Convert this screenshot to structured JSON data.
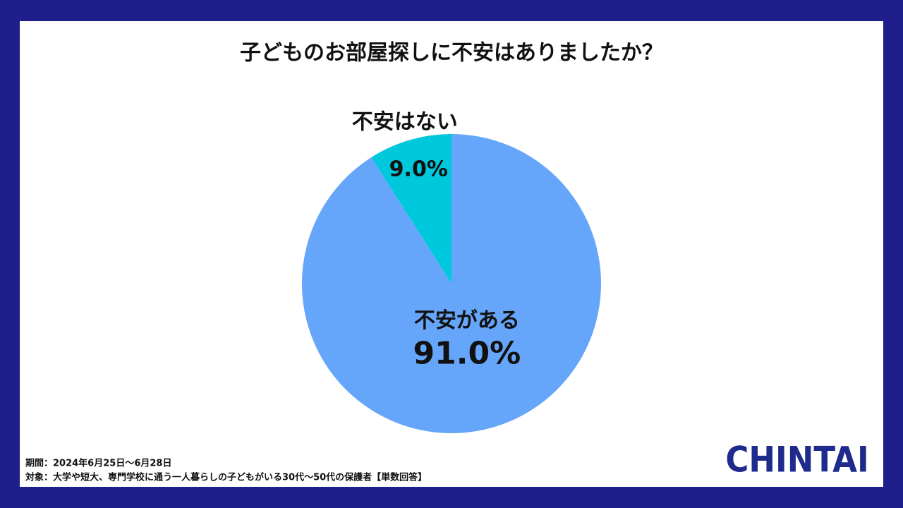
{
  "chart_data": {
    "type": "pie",
    "title": "子どものお部屋探しに不安はありましたか？",
    "categories": [
      "不安がある",
      "不安はない"
    ],
    "values": [
      91.0,
      9.0
    ],
    "value_labels": [
      "91.0%",
      "9.0%"
    ],
    "colors": [
      "#66a6fa",
      "#00c8dc"
    ],
    "notes": [
      "期間：2024年6月25日〜6月28日",
      "対象：大学や短大、専門学校に通う一人暮らしの子どもがいる30代〜50代の保護者【単数回答】"
    ],
    "logo": "CHINTAI"
  }
}
